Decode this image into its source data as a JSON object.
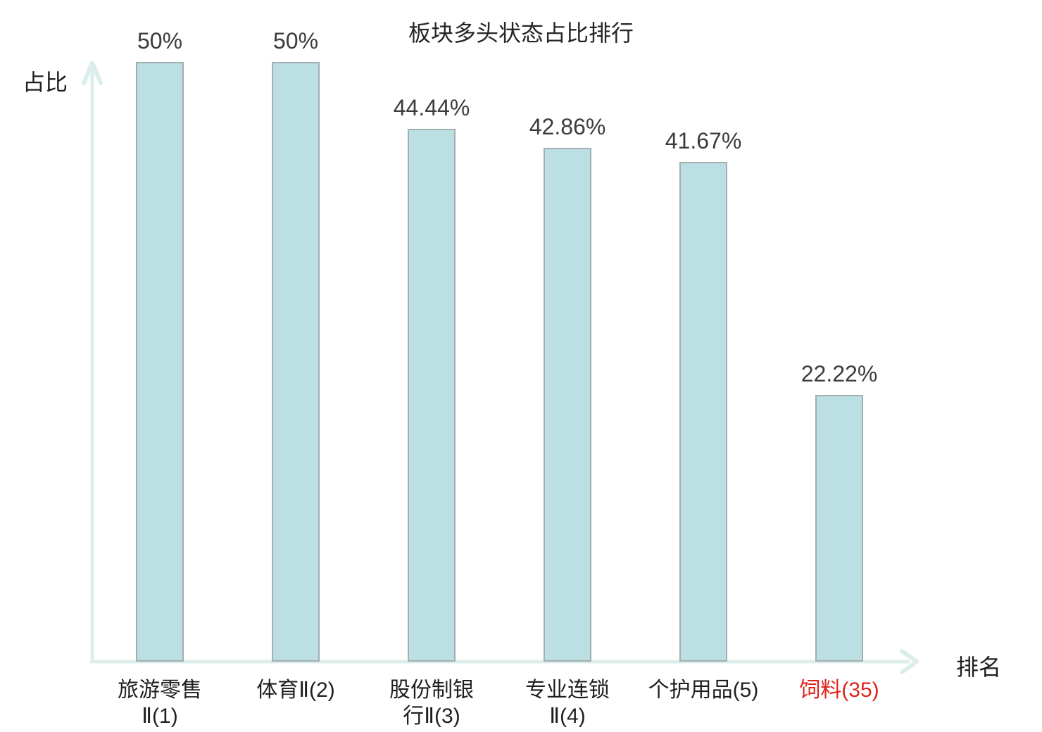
{
  "title": "板块多头状态占比排行",
  "axes": {
    "y_label": "占比",
    "x_label": "排名"
  },
  "colors": {
    "bar_fill": "#bbdfe3",
    "bar_border": "#a3aeb0",
    "axis_line": "#dceeeb",
    "value_text": "#3c3c3c",
    "category_text": "#1f1f1f",
    "highlight_text": "#df241c"
  },
  "chart_data": {
    "type": "bar",
    "title": "板块多头状态占比排行",
    "xlabel": "排名",
    "ylabel": "占比",
    "categories": [
      "旅游零售Ⅱ(1)",
      "体育Ⅱ(2)",
      "股份制银行Ⅱ(3)",
      "专业连锁Ⅱ(4)",
      "个护用品(5)",
      "饲料(35)"
    ],
    "values": [
      50,
      50,
      44.44,
      42.86,
      41.67,
      22.22
    ],
    "value_labels": [
      "50%",
      "50%",
      "44.44%",
      "42.86%",
      "41.67%",
      "22.22%"
    ],
    "categories_display": [
      [
        "旅游零售",
        "Ⅱ(1)"
      ],
      [
        "体育Ⅱ(2)"
      ],
      [
        "股份制银",
        "行Ⅱ(3)"
      ],
      [
        "专业连锁",
        "Ⅱ(4)"
      ],
      [
        "个护用品(5)"
      ],
      [
        "饲料(35)"
      ]
    ],
    "ylim": [
      0,
      50
    ],
    "grid": false,
    "legend": false,
    "highlight_index": 5
  }
}
